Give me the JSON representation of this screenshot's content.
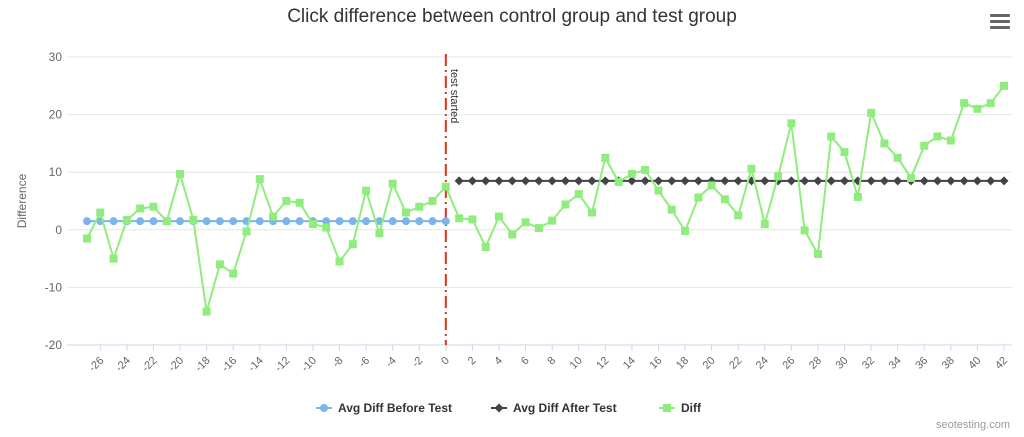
{
  "chart_data": {
    "type": "line",
    "title": "Click difference between control group and test group",
    "ylabel": "Difference",
    "xlabel": "",
    "xlim": [
      -27,
      42
    ],
    "ylim": [
      -20,
      30
    ],
    "y_ticks": [
      -20,
      -10,
      0,
      10,
      20,
      30
    ],
    "x_ticks": [
      -26,
      -24,
      -22,
      -20,
      -18,
      -16,
      -14,
      -12,
      -10,
      -8,
      -6,
      -4,
      -2,
      0,
      2,
      4,
      6,
      8,
      10,
      12,
      14,
      16,
      18,
      20,
      22,
      24,
      26,
      28,
      30,
      32,
      34,
      36,
      38,
      40,
      42
    ],
    "grid": true,
    "legend_position": "bottom-center",
    "annotation": {
      "x": 0,
      "label": "test started",
      "color": "#e0321c"
    },
    "series": [
      {
        "name": "Avg Diff Before Test",
        "color": "#7cb5ec",
        "marker": "circle",
        "x": [
          -27,
          -26,
          -25,
          -24,
          -23,
          -22,
          -21,
          -20,
          -19,
          -18,
          -17,
          -16,
          -15,
          -14,
          -13,
          -12,
          -11,
          -10,
          -9,
          -8,
          -7,
          -6,
          -5,
          -4,
          -3,
          -2,
          -1,
          0
        ],
        "y": [
          1.5,
          1.5,
          1.5,
          1.5,
          1.5,
          1.5,
          1.5,
          1.5,
          1.5,
          1.5,
          1.5,
          1.5,
          1.5,
          1.5,
          1.5,
          1.5,
          1.5,
          1.5,
          1.5,
          1.5,
          1.5,
          1.5,
          1.5,
          1.5,
          1.5,
          1.5,
          1.5,
          1.5
        ]
      },
      {
        "name": "Avg Diff After Test",
        "color": "#434348",
        "marker": "diamond",
        "x": [
          1,
          2,
          3,
          4,
          5,
          6,
          7,
          8,
          9,
          10,
          11,
          12,
          13,
          14,
          15,
          16,
          17,
          18,
          19,
          20,
          21,
          22,
          23,
          24,
          25,
          26,
          27,
          28,
          29,
          30,
          31,
          32,
          33,
          34,
          35,
          36,
          37,
          38,
          39,
          40,
          41,
          42
        ],
        "y": [
          8.5,
          8.5,
          8.5,
          8.5,
          8.5,
          8.5,
          8.5,
          8.5,
          8.5,
          8.5,
          8.5,
          8.5,
          8.5,
          8.5,
          8.5,
          8.5,
          8.5,
          8.5,
          8.5,
          8.5,
          8.5,
          8.5,
          8.5,
          8.5,
          8.5,
          8.5,
          8.5,
          8.5,
          8.5,
          8.5,
          8.5,
          8.5,
          8.5,
          8.5,
          8.5,
          8.5,
          8.5,
          8.5,
          8.5,
          8.5,
          8.5,
          8.5
        ]
      },
      {
        "name": "Diff",
        "color": "#90ed7d",
        "marker": "square",
        "x": [
          -27,
          -26,
          -25,
          -24,
          -23,
          -22,
          -21,
          -20,
          -19,
          -18,
          -17,
          -16,
          -15,
          -14,
          -13,
          -12,
          -11,
          -10,
          -9,
          -8,
          -7,
          -6,
          -5,
          -4,
          -3,
          -2,
          -1,
          0,
          1,
          2,
          3,
          4,
          5,
          6,
          7,
          8,
          9,
          10,
          11,
          12,
          13,
          14,
          15,
          16,
          17,
          18,
          19,
          20,
          21,
          22,
          23,
          24,
          25,
          26,
          27,
          28,
          29,
          30,
          31,
          32,
          33,
          34,
          35,
          36,
          37,
          38,
          39,
          40,
          41,
          42
        ],
        "y": [
          -1.5,
          3.0,
          -5.0,
          1.7,
          3.7,
          4.0,
          1.5,
          9.7,
          1.7,
          -14.2,
          -6.0,
          -7.6,
          -0.3,
          8.8,
          2.3,
          5.0,
          4.7,
          1.0,
          0.4,
          -5.5,
          -2.5,
          6.8,
          -0.6,
          8.0,
          3.0,
          4.0,
          5.0,
          7.5,
          2.0,
          1.8,
          -3.0,
          2.3,
          -0.8,
          1.3,
          0.3,
          1.6,
          4.4,
          6.2,
          3.0,
          12.5,
          8.3,
          9.7,
          10.4,
          6.8,
          3.5,
          -0.2,
          5.6,
          7.7,
          5.3,
          2.5,
          10.6,
          1.0,
          9.3,
          18.5,
          -0.1,
          -4.2,
          16.2,
          13.5,
          5.7,
          20.3,
          15.0,
          12.5,
          9.0,
          14.6,
          16.2,
          15.5,
          22.0,
          21.0,
          22.0,
          25.0
        ]
      }
    ]
  },
  "menu_icon": "hamburger-menu-icon",
  "credits": "seotesting.com"
}
